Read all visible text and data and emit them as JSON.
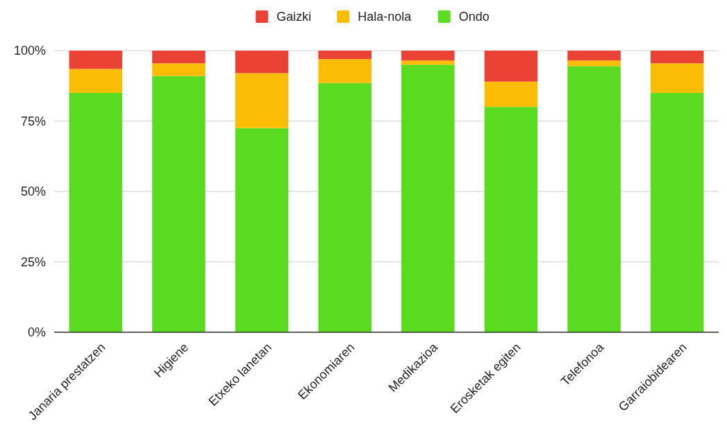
{
  "chart_data": {
    "type": "bar",
    "stacked": true,
    "legend": "top",
    "grid": "y",
    "categories": [
      "Janaria prestatzen",
      "Higiene",
      "Etxeko lanetan",
      "Ekonomiaren",
      "Medikazioa",
      "Erosketak egiten",
      "Telefonoa",
      "Garraiobidearen"
    ],
    "series": [
      {
        "name": "Ondo",
        "color": "#5bdb20",
        "values": [
          85,
          91,
          72.5,
          88.5,
          95,
          80,
          94.5,
          85
        ]
      },
      {
        "name": "Hala-nola",
        "color": "#fabd03",
        "values": [
          8.5,
          4.5,
          19.5,
          8.5,
          1.5,
          9,
          2,
          10.5
        ]
      },
      {
        "name": "Gaizki",
        "color": "#ea4335",
        "values": [
          6.5,
          4.5,
          8,
          3,
          3.5,
          11,
          3.5,
          4.5
        ]
      }
    ],
    "ylim": [
      0,
      100
    ],
    "yticks": [
      {
        "value": 0,
        "label": "0%"
      },
      {
        "value": 25,
        "label": "25%"
      },
      {
        "value": 50,
        "label": "50%"
      },
      {
        "value": 75,
        "label": "75%"
      },
      {
        "value": 100,
        "label": "100%"
      }
    ]
  }
}
